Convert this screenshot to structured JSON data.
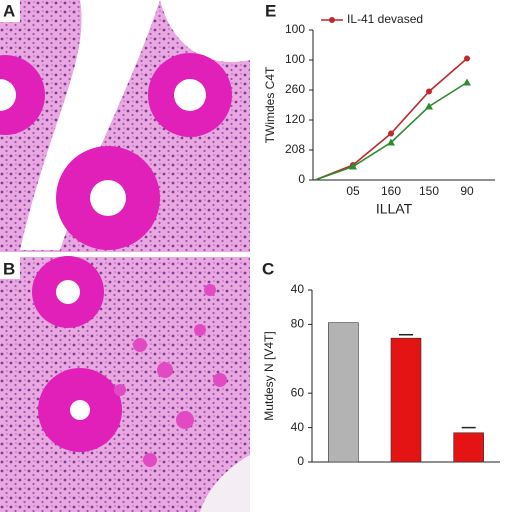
{
  "panels": {
    "a": "A",
    "b": "B"
  },
  "chart_data": [
    {
      "type": "line",
      "panel": "E",
      "ylabel": "TWimdes C4T",
      "xlabel": "ILLAT",
      "categories": [
        null,
        "05",
        "160",
        "150",
        "90"
      ],
      "series": [
        {
          "name": "IL-41 devased",
          "color": "#c0282d",
          "marker": "circle",
          "values": [
            0,
            10,
            31,
            59,
            81
          ]
        },
        {
          "color": "#2e8b2e",
          "marker": "triangle",
          "values": [
            0,
            9,
            25,
            49,
            65
          ]
        }
      ],
      "ylim": [
        0,
        100
      ],
      "yticks": [
        0,
        {
          "value": 20,
          "label": "208"
        },
        {
          "value": 40,
          "label": "120"
        },
        {
          "value": 60,
          "label": "260"
        },
        {
          "value": 80,
          "label": "100"
        },
        {
          "value": 100,
          "label": "100"
        }
      ]
    },
    {
      "type": "bar",
      "panel": "C",
      "ylabel": "Mutdesy N [V4T]",
      "categories": [
        null,
        null,
        null
      ],
      "values": [
        81,
        72,
        17
      ],
      "errors": [
        0,
        2,
        3
      ],
      "colors": [
        "#b3b3b3",
        "#e41414",
        "#e41414"
      ],
      "ylim": [
        0,
        100
      ],
      "yticks": [
        0,
        {
          "value": 20,
          "label": "40"
        },
        {
          "value": 40,
          "label": "60"
        },
        {
          "value": 80,
          "label": "80"
        },
        {
          "value": 100,
          "label": "40"
        }
      ]
    }
  ]
}
